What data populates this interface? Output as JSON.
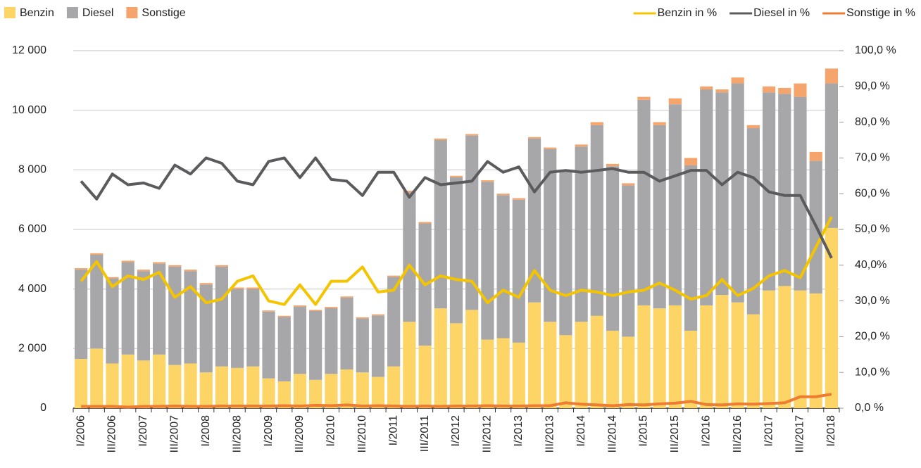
{
  "chart_data": {
    "type": "bar",
    "stacked": true,
    "grid": true,
    "legend": "top",
    "categories": [
      "I/2006",
      null,
      "III/2006",
      null,
      "I/2007",
      null,
      "III/2007",
      null,
      "I/2008",
      null,
      "III/2008",
      null,
      "I/2009",
      null,
      "III/2009",
      null,
      "I/2010",
      null,
      "III/2010",
      null,
      "I/2011",
      null,
      "III/2011",
      null,
      "I/2012",
      null,
      "III/2012",
      null,
      "I/2013",
      null,
      "III/2013",
      null,
      "I/2014",
      null,
      "III/2014",
      null,
      "I/2015",
      null,
      "III/2015",
      null,
      "I/2016",
      null,
      "III/2016",
      null,
      "I/2017",
      null,
      "III/2017",
      null,
      "I/2018"
    ],
    "ylim": [
      0,
      12000
    ],
    "yticks": [
      {
        "value": 0,
        "label": "0"
      },
      {
        "value": 2000,
        "label": "2 000"
      },
      {
        "value": 4000,
        "label": "4 000"
      },
      {
        "value": 6000,
        "label": "6 000"
      },
      {
        "value": 8000,
        "label": "8 000"
      },
      {
        "value": 10000,
        "label": "10 000"
      },
      {
        "value": 12000,
        "label": "12 000"
      }
    ],
    "y2lim": [
      0,
      100
    ],
    "y2ticks": [
      {
        "value": 0,
        "label": "0,0 %"
      },
      {
        "value": 10,
        "label": "10,0 %"
      },
      {
        "value": 20,
        "label": "20,0 %"
      },
      {
        "value": 30,
        "label": "30,0 %"
      },
      {
        "value": 40,
        "label": "40,0%"
      },
      {
        "value": 50,
        "label": "50,0 %"
      },
      {
        "value": 60,
        "label": "60,0 %"
      },
      {
        "value": 70,
        "label": "70,0 %"
      },
      {
        "value": 80,
        "label": "80,0 %"
      },
      {
        "value": 90,
        "label": "90,0 %"
      },
      {
        "value": 100,
        "label": "100,0 %"
      }
    ],
    "series": [
      {
        "name": "Benzin",
        "type": "bar",
        "color": "#fdd466",
        "values": [
          1650,
          2000,
          1500,
          1800,
          1600,
          1800,
          1450,
          1500,
          1200,
          1400,
          1350,
          1400,
          1000,
          900,
          1150,
          950,
          1150,
          1300,
          1200,
          1050,
          1400,
          2900,
          2100,
          3350,
          2850,
          3300,
          2300,
          2350,
          2200,
          3550,
          2900,
          2450,
          2900,
          3100,
          2600,
          2400,
          3450,
          3350,
          3450,
          2600,
          3450,
          3800,
          3550,
          3150,
          3950,
          4100,
          3950,
          3850,
          6050
        ]
      },
      {
        "name": "Diesel",
        "type": "bar",
        "color": "#a7a7a9",
        "values": [
          3000,
          3150,
          2860,
          3100,
          3000,
          3050,
          3300,
          3100,
          2950,
          3350,
          2650,
          2600,
          2240,
          2160,
          2260,
          2310,
          2210,
          2410,
          1810,
          2060,
          3010,
          4350,
          4100,
          5650,
          4900,
          5850,
          5300,
          4800,
          4800,
          5500,
          5800,
          5500,
          5880,
          6400,
          5520,
          5080,
          6900,
          6150,
          6750,
          5550,
          7250,
          6800,
          7350,
          6250,
          6650,
          6450,
          6500,
          4450,
          4850
        ]
      },
      {
        "name": "Sonstige",
        "type": "bar",
        "color": "#f5a56b",
        "values": [
          50,
          50,
          40,
          50,
          50,
          50,
          50,
          50,
          50,
          50,
          50,
          50,
          40,
          40,
          40,
          40,
          40,
          40,
          40,
          40,
          40,
          50,
          50,
          50,
          50,
          50,
          50,
          50,
          50,
          50,
          50,
          60,
          70,
          100,
          80,
          70,
          100,
          100,
          200,
          250,
          100,
          100,
          200,
          100,
          200,
          200,
          450,
          300,
          500
        ]
      },
      {
        "name": "Benzin in %",
        "type": "line",
        "axis": "y2",
        "color": "#f5c400",
        "values": [
          35.5,
          41,
          34,
          37,
          36,
          38,
          31,
          34,
          29.5,
          30.5,
          35.5,
          37,
          30,
          29,
          34.5,
          29,
          35.5,
          35.5,
          39.5,
          32.5,
          33,
          40,
          34.5,
          37,
          36,
          35.5,
          29.5,
          33,
          31,
          38.5,
          33,
          31.5,
          33,
          32.5,
          31.5,
          32.5,
          33,
          35,
          33,
          30.5,
          31.5,
          36,
          31.5,
          33.5,
          37,
          38.5,
          36.5,
          45,
          53.5
        ]
      },
      {
        "name": "Diesel in %",
        "type": "line",
        "axis": "y2",
        "color": "#5b5b5d",
        "values": [
          63.5,
          58.5,
          65.5,
          62.5,
          63,
          61.5,
          68,
          65.5,
          70,
          68.5,
          63.5,
          62.5,
          69,
          70,
          64.5,
          70,
          64,
          63.5,
          59.5,
          66,
          66,
          59,
          64.5,
          62.5,
          63,
          63.5,
          69,
          66,
          67.5,
          60.5,
          66,
          66.5,
          66,
          66.5,
          67,
          66,
          66,
          63.5,
          65,
          66.5,
          66.5,
          62.5,
          66,
          64.5,
          60.5,
          59.5,
          59.5,
          51,
          42
        ]
      },
      {
        "name": "Sonstige in %",
        "type": "line",
        "axis": "y2",
        "color": "#ee7d31",
        "values": [
          0.5,
          0.5,
          0.5,
          0.3,
          0.5,
          0.5,
          0.6,
          0.5,
          0.5,
          0.6,
          0.6,
          0.6,
          0.6,
          0.7,
          0.6,
          0.8,
          0.7,
          0.9,
          0.6,
          0.7,
          0.6,
          0.5,
          0.6,
          0.5,
          0.6,
          0.6,
          0.7,
          0.6,
          0.6,
          0.7,
          0.7,
          1.5,
          1.1,
          0.9,
          0.7,
          1.0,
          0.9,
          1.2,
          1.4,
          1.9,
          1.0,
          0.9,
          1.2,
          1.1,
          1.3,
          1.5,
          3.2,
          3.2,
          3.9
        ]
      }
    ]
  }
}
